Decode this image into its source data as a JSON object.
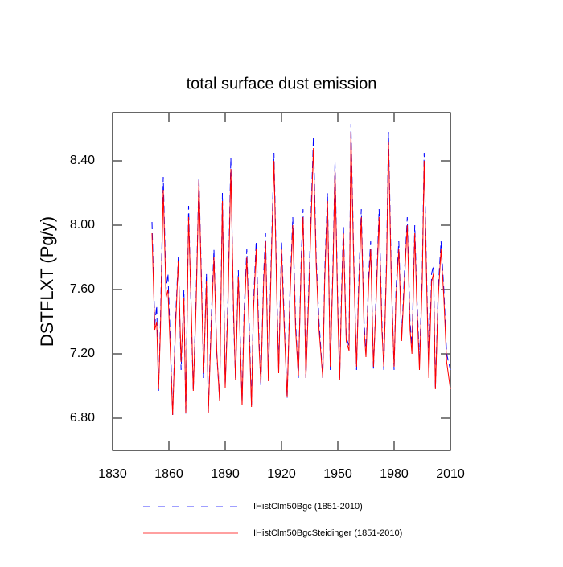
{
  "chart_data": {
    "type": "line",
    "title": "total surface dust emission",
    "y_label": "DSTFLXT  (Pg/y)",
    "x": [
      1851,
      1852.5,
      1853.5,
      1854.5,
      1855.5,
      1857,
      1858.5,
      1859.5,
      1861,
      1862,
      1863.5,
      1865,
      1866.5,
      1868,
      1869,
      1870.5,
      1872,
      1873,
      1874.5,
      1876,
      1877.5,
      1878.5,
      1880,
      1881,
      1882.5,
      1884,
      1885.5,
      1887,
      1888.5,
      1890,
      1891.5,
      1893,
      1894.5,
      1895.5,
      1897,
      1899,
      1900,
      1901.5,
      1903,
      1904,
      1905,
      1906.5,
      1908,
      1909,
      1910.5,
      1911.5,
      1913,
      1914.5,
      1916,
      1917.5,
      1918.5,
      1920,
      1921.5,
      1923,
      1924.5,
      1926,
      1927.5,
      1929,
      1930.5,
      1931.5,
      1933,
      1934.5,
      1937,
      1938.5,
      1940,
      1942,
      1943,
      1944.5,
      1946,
      1947.5,
      1948.5,
      1950,
      1951,
      1952,
      1953,
      1954.5,
      1956,
      1957,
      1958.5,
      1960,
      1961,
      1962.5,
      1964,
      1965,
      1966.5,
      1967.5,
      1969,
      1970.5,
      1972,
      1973.5,
      1974.5,
      1976,
      1977,
      1978.5,
      1980,
      1981,
      1982.5,
      1984,
      1985.5,
      1987,
      1988.5,
      1989.5,
      1991,
      1992,
      1993.5,
      1995,
      1996,
      1997.5,
      1998.5,
      2000,
      2001,
      2002,
      2003.5,
      2005,
      2006.5,
      2008,
      2010
    ],
    "series": [
      {
        "name": "IHistClm50Bgc (1851-2010)",
        "color": "#0000ff",
        "line_style": "dashed",
        "values": [
          8.02,
          7.38,
          7.5,
          6.97,
          7.4,
          8.3,
          7.6,
          7.7,
          7.2,
          6.82,
          7.4,
          7.8,
          7.1,
          7.6,
          6.82,
          8.12,
          7.4,
          6.97,
          7.55,
          8.3,
          7.6,
          7.05,
          7.7,
          6.83,
          7.4,
          7.85,
          7.2,
          6.92,
          8.2,
          7.0,
          7.55,
          8.42,
          7.4,
          7.05,
          7.72,
          6.9,
          7.45,
          7.85,
          7.3,
          6.88,
          7.5,
          7.9,
          7.3,
          7.0,
          7.7,
          7.95,
          7.05,
          7.8,
          8.45,
          7.6,
          7.1,
          7.9,
          7.4,
          6.92,
          7.6,
          8.05,
          7.4,
          7.05,
          7.8,
          8.1,
          7.05,
          7.6,
          8.55,
          7.8,
          7.4,
          7.05,
          7.7,
          8.2,
          7.1,
          7.8,
          8.4,
          7.5,
          7.05,
          7.6,
          8.0,
          7.3,
          7.25,
          8.63,
          7.8,
          7.1,
          7.6,
          8.1,
          7.4,
          7.2,
          7.7,
          7.9,
          7.1,
          7.6,
          8.1,
          7.4,
          7.1,
          7.8,
          8.58,
          7.7,
          7.1,
          7.6,
          7.9,
          7.3,
          7.7,
          8.05,
          7.4,
          7.25,
          8.0,
          7.6,
          7.15,
          7.7,
          8.45,
          7.6,
          7.1,
          7.7,
          7.75,
          6.98,
          7.6,
          7.9,
          7.6,
          7.2,
          7.1
        ]
      },
      {
        "name": "IHistClm50BgcSteidinger (1851-2010)",
        "color": "#ff0000",
        "line_style": "solid",
        "values": [
          7.95,
          7.35,
          7.4,
          6.98,
          7.35,
          8.22,
          7.55,
          7.6,
          7.15,
          6.82,
          7.35,
          7.78,
          7.15,
          7.55,
          6.83,
          8.05,
          7.45,
          6.97,
          7.5,
          8.28,
          7.55,
          7.08,
          7.65,
          6.83,
          7.35,
          7.8,
          7.22,
          6.91,
          8.15,
          6.99,
          7.5,
          8.35,
          7.45,
          7.04,
          7.68,
          6.88,
          7.4,
          7.8,
          7.25,
          6.87,
          7.45,
          7.85,
          7.25,
          7.02,
          7.65,
          7.9,
          7.03,
          7.75,
          8.4,
          7.55,
          7.08,
          7.85,
          7.35,
          6.93,
          7.55,
          8.0,
          7.35,
          7.06,
          7.75,
          8.05,
          7.05,
          7.55,
          8.48,
          7.75,
          7.35,
          7.05,
          7.65,
          8.15,
          7.12,
          7.75,
          8.35,
          7.45,
          7.04,
          7.55,
          7.95,
          7.28,
          7.22,
          8.58,
          7.75,
          7.12,
          7.55,
          8.05,
          7.35,
          7.18,
          7.65,
          7.85,
          7.12,
          7.55,
          8.05,
          7.35,
          7.12,
          7.75,
          8.52,
          7.65,
          7.12,
          7.55,
          7.85,
          7.28,
          7.65,
          8.0,
          7.35,
          7.2,
          7.95,
          7.55,
          7.1,
          7.65,
          8.4,
          7.55,
          7.05,
          7.65,
          7.7,
          6.98,
          7.55,
          7.85,
          7.55,
          7.15,
          6.98
        ]
      }
    ],
    "xlim": [
      1830,
      2010
    ],
    "xticks": [
      1830,
      1860,
      1890,
      1920,
      1950,
      1980,
      2010
    ],
    "ylim": [
      6.6,
      8.7
    ],
    "yticks": [
      {
        "value": 6.8,
        "label": "6.80"
      },
      {
        "value": 7.2,
        "label": "7.20"
      },
      {
        "value": 7.6,
        "label": "7.60"
      },
      {
        "value": 8.0,
        "label": "8.00"
      },
      {
        "value": 8.4,
        "label": "8.40"
      }
    ]
  }
}
